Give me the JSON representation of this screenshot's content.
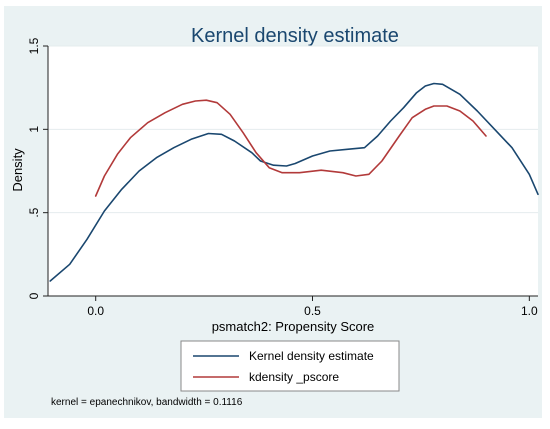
{
  "chart_data": {
    "type": "line",
    "title": "Kernel density estimate",
    "xlabel": "psmatch2: Propensity Score",
    "ylabel": "Density",
    "xlim": [
      -0.11,
      1.02
    ],
    "ylim": [
      0,
      1.5
    ],
    "x_ticks": [
      "0.0",
      "0.5",
      "1.0"
    ],
    "x_tick_values": [
      0,
      0.5,
      1.0
    ],
    "y_ticks": [
      "0",
      ".5",
      "1",
      "1.5"
    ],
    "y_tick_values": [
      0,
      0.5,
      1,
      1.5
    ],
    "grid": "horizontal",
    "legend_position": "bottom",
    "note": "kernel = epanechnikov, bandwidth = 0.1116",
    "series": [
      {
        "name": "Kernel density estimate",
        "color": "#1a476f",
        "points": [
          [
            -0.105,
            0.09
          ],
          [
            -0.06,
            0.19
          ],
          [
            -0.02,
            0.34
          ],
          [
            0.02,
            0.51
          ],
          [
            0.06,
            0.64
          ],
          [
            0.1,
            0.75
          ],
          [
            0.14,
            0.83
          ],
          [
            0.18,
            0.89
          ],
          [
            0.22,
            0.94
          ],
          [
            0.26,
            0.975
          ],
          [
            0.29,
            0.97
          ],
          [
            0.32,
            0.93
          ],
          [
            0.36,
            0.86
          ],
          [
            0.38,
            0.81
          ],
          [
            0.41,
            0.785
          ],
          [
            0.44,
            0.78
          ],
          [
            0.46,
            0.795
          ],
          [
            0.5,
            0.84
          ],
          [
            0.54,
            0.87
          ],
          [
            0.58,
            0.88
          ],
          [
            0.62,
            0.89
          ],
          [
            0.65,
            0.96
          ],
          [
            0.68,
            1.05
          ],
          [
            0.71,
            1.13
          ],
          [
            0.74,
            1.22
          ],
          [
            0.76,
            1.26
          ],
          [
            0.78,
            1.275
          ],
          [
            0.8,
            1.27
          ],
          [
            0.84,
            1.21
          ],
          [
            0.88,
            1.11
          ],
          [
            0.92,
            1.0
          ],
          [
            0.96,
            0.89
          ],
          [
            1.0,
            0.73
          ],
          [
            1.02,
            0.61
          ]
        ]
      },
      {
        "name": "kdensity _pscore",
        "color": "#b23a3a",
        "points": [
          [
            0.0,
            0.6
          ],
          [
            0.02,
            0.72
          ],
          [
            0.05,
            0.85
          ],
          [
            0.08,
            0.95
          ],
          [
            0.12,
            1.04
          ],
          [
            0.16,
            1.1
          ],
          [
            0.2,
            1.15
          ],
          [
            0.23,
            1.17
          ],
          [
            0.255,
            1.175
          ],
          [
            0.28,
            1.16
          ],
          [
            0.31,
            1.09
          ],
          [
            0.34,
            0.98
          ],
          [
            0.37,
            0.86
          ],
          [
            0.4,
            0.77
          ],
          [
            0.43,
            0.74
          ],
          [
            0.47,
            0.74
          ],
          [
            0.52,
            0.755
          ],
          [
            0.57,
            0.74
          ],
          [
            0.6,
            0.72
          ],
          [
            0.63,
            0.73
          ],
          [
            0.66,
            0.81
          ],
          [
            0.7,
            0.96
          ],
          [
            0.73,
            1.07
          ],
          [
            0.76,
            1.12
          ],
          [
            0.78,
            1.14
          ],
          [
            0.81,
            1.14
          ],
          [
            0.84,
            1.11
          ],
          [
            0.87,
            1.05
          ],
          [
            0.9,
            0.96
          ]
        ]
      }
    ]
  }
}
